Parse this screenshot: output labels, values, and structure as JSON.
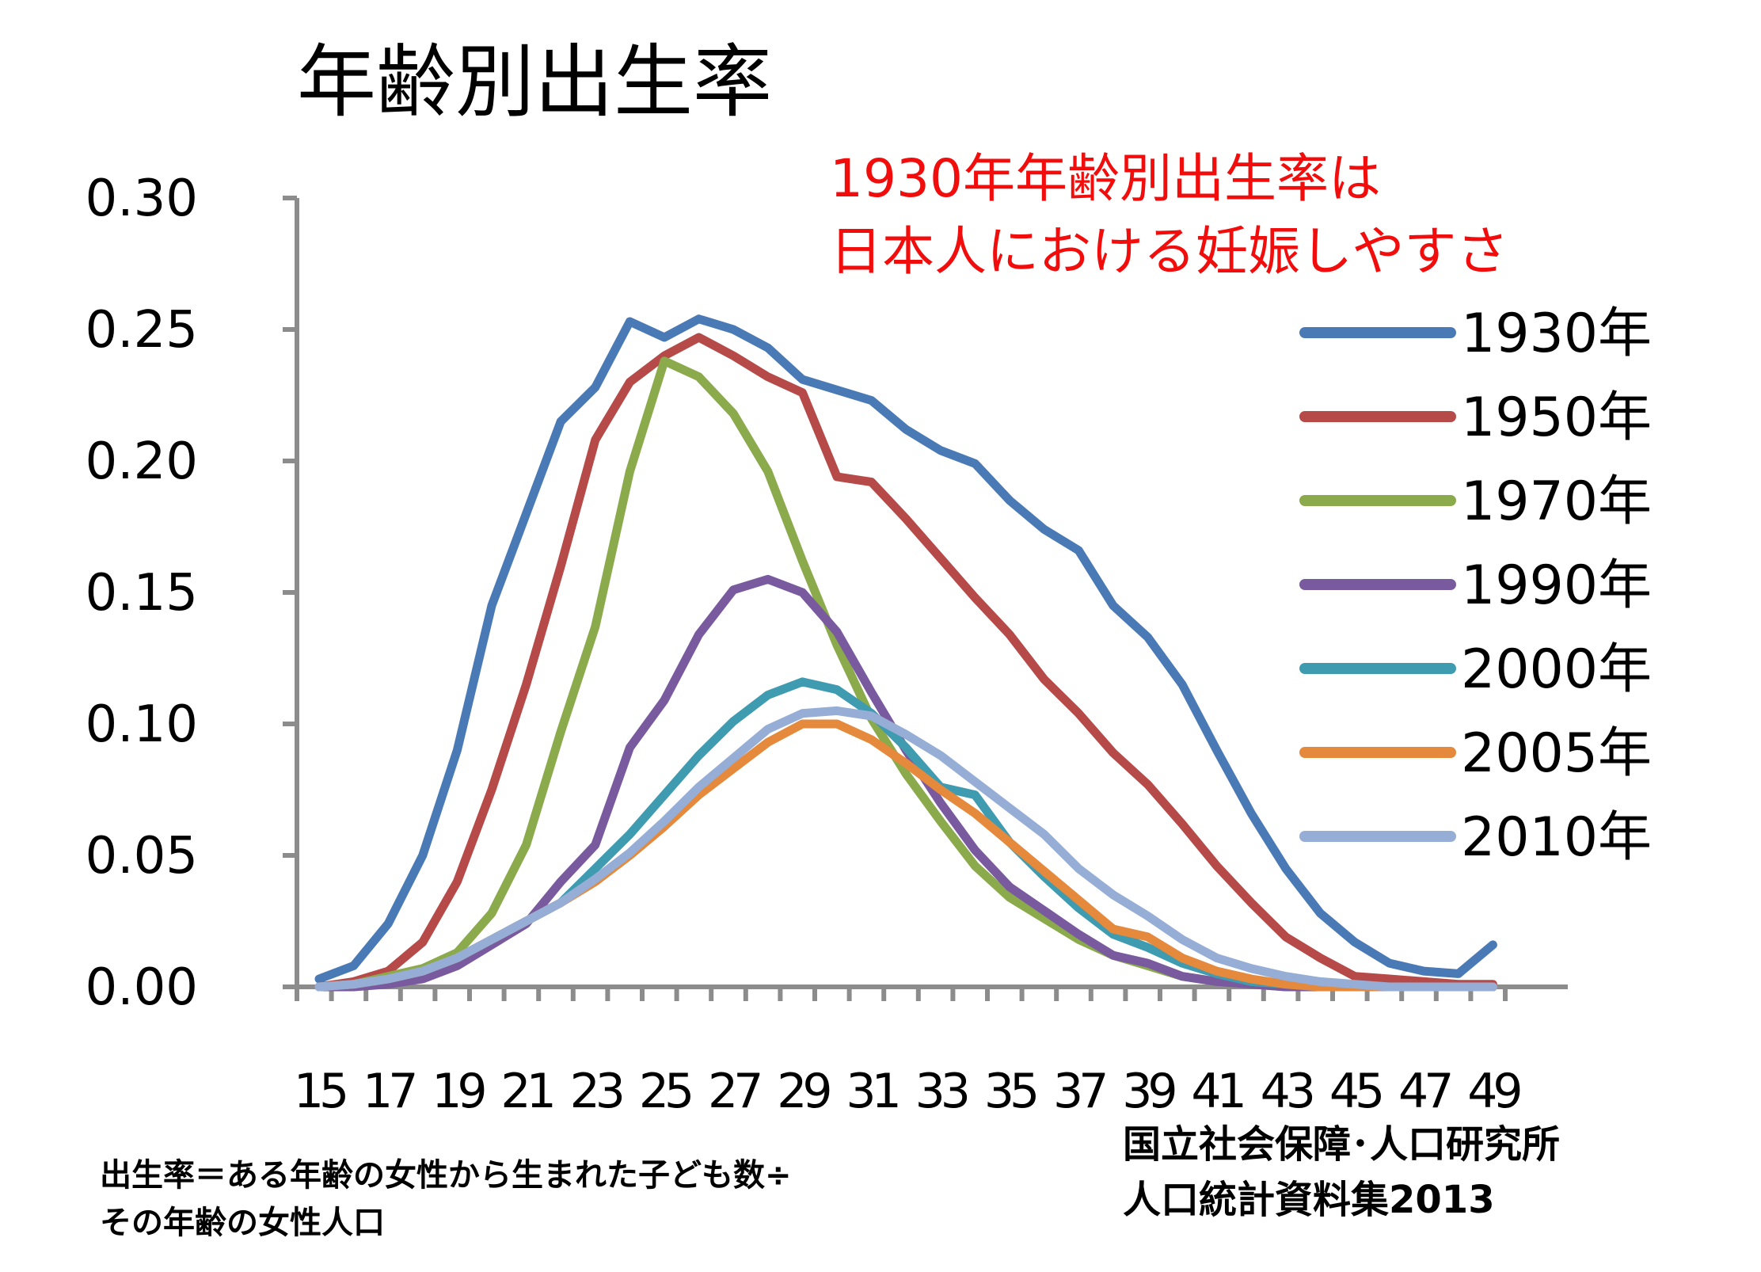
{
  "title": "年齢別出生率",
  "annotation": {
    "line1": "1930年年齢別出生率は",
    "line2": "日本人における妊娠しやすさ"
  },
  "footnote": {
    "line1": "出生率＝ある年齢の女性から生まれた子ども数÷",
    "line2": "その年齢の女性人口"
  },
  "source": {
    "line1": "国立社会保障･人口研究所",
    "line2": "人口統計資料集2013"
  },
  "chart_data": {
    "type": "line",
    "title": "年齢別出生率",
    "xlabel": "",
    "ylabel": "",
    "ylim": [
      0,
      0.3
    ],
    "yticks": [
      "0.00",
      "0.05",
      "0.10",
      "0.15",
      "0.20",
      "0.25",
      "0.30"
    ],
    "x": [
      15,
      16,
      17,
      18,
      19,
      20,
      21,
      22,
      23,
      24,
      25,
      26,
      27,
      28,
      29,
      30,
      31,
      32,
      33,
      34,
      35,
      36,
      37,
      38,
      39,
      40,
      41,
      42,
      43,
      44,
      45,
      46,
      47,
      48,
      49
    ],
    "xtick_labels": [
      "15",
      "17",
      "19",
      "21",
      "23",
      "25",
      "27",
      "29",
      "31",
      "33",
      "35",
      "37",
      "39",
      "41",
      "43",
      "45",
      "47",
      "49"
    ],
    "grid": false,
    "legend_position": "right",
    "series": [
      {
        "name": "1930年",
        "color": "#4a7ab5",
        "values": [
          0.003,
          0.008,
          0.024,
          0.05,
          0.09,
          0.145,
          0.18,
          0.215,
          0.228,
          0.253,
          0.247,
          0.254,
          0.25,
          0.243,
          0.231,
          0.227,
          0.223,
          0.212,
          0.204,
          0.199,
          0.185,
          0.174,
          0.166,
          0.145,
          0.133,
          0.115,
          0.09,
          0.066,
          0.045,
          0.028,
          0.017,
          0.009,
          0.006,
          0.005,
          0.016
        ]
      },
      {
        "name": "1950年",
        "color": "#b54a48",
        "values": [
          0.0,
          0.002,
          0.006,
          0.017,
          0.04,
          0.075,
          0.115,
          0.16,
          0.208,
          0.23,
          0.24,
          0.247,
          0.24,
          0.232,
          0.226,
          0.194,
          0.192,
          0.178,
          0.163,
          0.148,
          0.134,
          0.117,
          0.104,
          0.089,
          0.077,
          0.062,
          0.046,
          0.032,
          0.019,
          0.011,
          0.004,
          0.003,
          0.002,
          0.001,
          0.001
        ]
      },
      {
        "name": "1970年",
        "color": "#8aaa4c",
        "values": [
          0.0,
          0.001,
          0.004,
          0.007,
          0.013,
          0.028,
          0.054,
          0.097,
          0.137,
          0.196,
          0.238,
          0.232,
          0.218,
          0.196,
          0.162,
          0.13,
          0.102,
          0.081,
          0.063,
          0.046,
          0.034,
          0.026,
          0.018,
          0.012,
          0.008,
          0.004,
          0.002,
          0.001,
          0.0,
          0.0,
          0.0,
          0.0,
          0.0,
          0.0,
          0.0
        ]
      },
      {
        "name": "1990年",
        "color": "#7a5a9e",
        "values": [
          0.0,
          0.0,
          0.001,
          0.003,
          0.008,
          0.016,
          0.024,
          0.04,
          0.054,
          0.091,
          0.109,
          0.134,
          0.151,
          0.155,
          0.15,
          0.135,
          0.112,
          0.09,
          0.07,
          0.052,
          0.038,
          0.029,
          0.02,
          0.012,
          0.009,
          0.004,
          0.002,
          0.001,
          0.0,
          0.0,
          0.0,
          0.0,
          0.0,
          0.0,
          0.0
        ]
      },
      {
        "name": "2000年",
        "color": "#3f9bb0",
        "values": [
          0.0,
          0.001,
          0.003,
          0.006,
          0.011,
          0.018,
          0.025,
          0.032,
          0.045,
          0.058,
          0.073,
          0.088,
          0.101,
          0.111,
          0.116,
          0.113,
          0.104,
          0.091,
          0.076,
          0.073,
          0.055,
          0.042,
          0.03,
          0.02,
          0.015,
          0.009,
          0.005,
          0.002,
          0.001,
          0.0,
          0.0,
          0.0,
          0.0,
          0.0,
          0.0
        ]
      },
      {
        "name": "2005年",
        "color": "#e58a3c",
        "values": [
          0.0,
          0.001,
          0.003,
          0.006,
          0.011,
          0.018,
          0.025,
          0.032,
          0.04,
          0.05,
          0.061,
          0.073,
          0.083,
          0.093,
          0.1,
          0.1,
          0.094,
          0.085,
          0.075,
          0.066,
          0.055,
          0.044,
          0.033,
          0.022,
          0.019,
          0.011,
          0.006,
          0.003,
          0.001,
          0.0,
          0.0,
          0.0,
          0.0,
          0.0,
          0.0
        ]
      },
      {
        "name": "2010年",
        "color": "#96add6",
        "values": [
          0.0,
          0.001,
          0.003,
          0.006,
          0.011,
          0.018,
          0.025,
          0.032,
          0.041,
          0.051,
          0.063,
          0.076,
          0.087,
          0.098,
          0.104,
          0.105,
          0.103,
          0.096,
          0.088,
          0.078,
          0.068,
          0.058,
          0.045,
          0.035,
          0.027,
          0.018,
          0.011,
          0.007,
          0.004,
          0.002,
          0.001,
          0.0,
          0.0,
          0.0,
          0.0
        ]
      }
    ]
  }
}
